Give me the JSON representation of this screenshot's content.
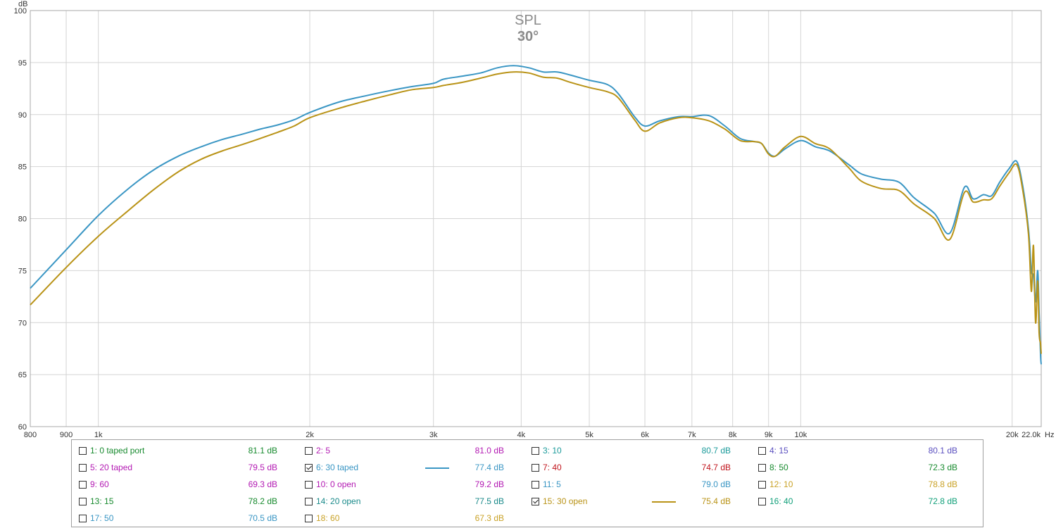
{
  "chart_data": {
    "type": "line",
    "title": "SPL",
    "subtitle": "30°",
    "xlabel": "Hz",
    "ylabel": "dB",
    "x_scale": "log",
    "xlim": [
      800,
      22000
    ],
    "ylim": [
      60,
      100
    ],
    "x_ticks": [
      {
        "v": 800,
        "label": "800"
      },
      {
        "v": 900,
        "label": "900"
      },
      {
        "v": 1000,
        "label": "1k"
      },
      {
        "v": 2000,
        "label": "2k"
      },
      {
        "v": 3000,
        "label": "3k"
      },
      {
        "v": 4000,
        "label": "4k"
      },
      {
        "v": 5000,
        "label": "5k"
      },
      {
        "v": 6000,
        "label": "6k"
      },
      {
        "v": 7000,
        "label": "7k"
      },
      {
        "v": 8000,
        "label": "8k"
      },
      {
        "v": 9000,
        "label": "9k"
      },
      {
        "v": 10000,
        "label": "10k"
      },
      {
        "v": 20000,
        "label": "20k"
      },
      {
        "v": 22000,
        "label": "22.0k"
      }
    ],
    "y_ticks": [
      {
        "v": 60,
        "label": "60"
      },
      {
        "v": 65,
        "label": "65"
      },
      {
        "v": 70,
        "label": "70"
      },
      {
        "v": 75,
        "label": "75"
      },
      {
        "v": 80,
        "label": "80"
      },
      {
        "v": 85,
        "label": "85"
      },
      {
        "v": 90,
        "label": "90"
      },
      {
        "v": 95,
        "label": "95"
      },
      {
        "v": 100,
        "label": "100"
      }
    ],
    "grid": true,
    "series": [
      {
        "name": "6: 30 taped",
        "color": "#3a96c4",
        "points": [
          [
            800,
            73.3
          ],
          [
            900,
            77.0
          ],
          [
            1000,
            80.3
          ],
          [
            1100,
            82.8
          ],
          [
            1200,
            84.7
          ],
          [
            1300,
            86.0
          ],
          [
            1400,
            86.9
          ],
          [
            1500,
            87.6
          ],
          [
            1600,
            88.1
          ],
          [
            1700,
            88.6
          ],
          [
            1800,
            89.0
          ],
          [
            1900,
            89.5
          ],
          [
            2000,
            90.2
          ],
          [
            2200,
            91.2
          ],
          [
            2400,
            91.8
          ],
          [
            2600,
            92.3
          ],
          [
            2800,
            92.7
          ],
          [
            3000,
            93.0
          ],
          [
            3100,
            93.4
          ],
          [
            3300,
            93.7
          ],
          [
            3500,
            94.0
          ],
          [
            3700,
            94.5
          ],
          [
            3900,
            94.7
          ],
          [
            4100,
            94.5
          ],
          [
            4300,
            94.1
          ],
          [
            4500,
            94.1
          ],
          [
            4700,
            93.8
          ],
          [
            5000,
            93.3
          ],
          [
            5300,
            92.9
          ],
          [
            5500,
            92.0
          ],
          [
            5800,
            89.8
          ],
          [
            6000,
            88.9
          ],
          [
            6300,
            89.4
          ],
          [
            6700,
            89.8
          ],
          [
            7000,
            89.8
          ],
          [
            7400,
            89.9
          ],
          [
            7800,
            88.9
          ],
          [
            8200,
            87.7
          ],
          [
            8600,
            87.4
          ],
          [
            8800,
            87.2
          ],
          [
            9000,
            86.3
          ],
          [
            9200,
            86.0
          ],
          [
            9500,
            86.7
          ],
          [
            10000,
            87.5
          ],
          [
            10500,
            86.9
          ],
          [
            11000,
            86.5
          ],
          [
            11700,
            85.2
          ],
          [
            12200,
            84.3
          ],
          [
            13000,
            83.8
          ],
          [
            13800,
            83.5
          ],
          [
            14500,
            82.0
          ],
          [
            15500,
            80.5
          ],
          [
            16300,
            78.6
          ],
          [
            17100,
            83.0
          ],
          [
            17600,
            81.9
          ],
          [
            18200,
            82.3
          ],
          [
            18700,
            82.2
          ],
          [
            19200,
            83.5
          ],
          [
            19800,
            84.8
          ],
          [
            20300,
            85.5
          ],
          [
            20700,
            83.2
          ],
          [
            21100,
            79.0
          ],
          [
            21300,
            75.0
          ],
          [
            21450,
            74.5
          ],
          [
            21600,
            72.0
          ],
          [
            21750,
            75.0
          ],
          [
            21850,
            71.0
          ],
          [
            21950,
            67.0
          ],
          [
            22000,
            66.0
          ]
        ]
      },
      {
        "name": "15: 30 open",
        "color": "#b99317",
        "points": [
          [
            800,
            71.7
          ],
          [
            900,
            75.3
          ],
          [
            1000,
            78.3
          ],
          [
            1100,
            80.7
          ],
          [
            1200,
            82.8
          ],
          [
            1300,
            84.5
          ],
          [
            1400,
            85.7
          ],
          [
            1500,
            86.5
          ],
          [
            1600,
            87.1
          ],
          [
            1700,
            87.7
          ],
          [
            1800,
            88.3
          ],
          [
            1900,
            88.9
          ],
          [
            2000,
            89.7
          ],
          [
            2200,
            90.6
          ],
          [
            2400,
            91.3
          ],
          [
            2600,
            91.9
          ],
          [
            2800,
            92.4
          ],
          [
            3000,
            92.6
          ],
          [
            3100,
            92.8
          ],
          [
            3300,
            93.1
          ],
          [
            3500,
            93.5
          ],
          [
            3700,
            93.9
          ],
          [
            3900,
            94.1
          ],
          [
            4100,
            94.0
          ],
          [
            4300,
            93.6
          ],
          [
            4500,
            93.5
          ],
          [
            4700,
            93.1
          ],
          [
            5000,
            92.6
          ],
          [
            5300,
            92.2
          ],
          [
            5500,
            91.6
          ],
          [
            5800,
            89.5
          ],
          [
            6000,
            88.4
          ],
          [
            6300,
            89.2
          ],
          [
            6700,
            89.7
          ],
          [
            7000,
            89.7
          ],
          [
            7400,
            89.4
          ],
          [
            7800,
            88.6
          ],
          [
            8200,
            87.5
          ],
          [
            8600,
            87.4
          ],
          [
            8800,
            87.2
          ],
          [
            9000,
            86.2
          ],
          [
            9200,
            86.0
          ],
          [
            9500,
            86.9
          ],
          [
            10000,
            87.9
          ],
          [
            10500,
            87.2
          ],
          [
            11000,
            86.7
          ],
          [
            11700,
            84.9
          ],
          [
            12200,
            83.6
          ],
          [
            13000,
            82.9
          ],
          [
            13800,
            82.7
          ],
          [
            14500,
            81.4
          ],
          [
            15500,
            80.0
          ],
          [
            16300,
            78.0
          ],
          [
            17100,
            82.5
          ],
          [
            17600,
            81.6
          ],
          [
            18200,
            81.8
          ],
          [
            18700,
            81.9
          ],
          [
            19200,
            83.1
          ],
          [
            19800,
            84.4
          ],
          [
            20300,
            85.2
          ],
          [
            20700,
            82.8
          ],
          [
            21100,
            78.5
          ],
          [
            21300,
            73.0
          ],
          [
            21450,
            77.4
          ],
          [
            21600,
            70.0
          ],
          [
            21750,
            74.0
          ],
          [
            21850,
            69.0
          ],
          [
            21950,
            68.0
          ],
          [
            22000,
            67.0
          ]
        ]
      }
    ]
  },
  "legend": [
    {
      "label": "1: 0 taped port",
      "value": "81.1 dB",
      "color": "#178a2e",
      "checked": false
    },
    {
      "label": "2: 5",
      "value": "81.0 dB",
      "color": "#b31ab3",
      "checked": false
    },
    {
      "label": "3: 10",
      "value": "80.7 dB",
      "color": "#1a9a9a",
      "checked": false
    },
    {
      "label": "4: 15",
      "value": "80.1 dB",
      "color": "#5a4fbf",
      "checked": false
    },
    {
      "label": "5: 20 taped",
      "value": "79.5 dB",
      "color": "#b31ab3",
      "checked": false
    },
    {
      "label": "6: 30 taped",
      "value": "77.4 dB",
      "color": "#3a96c4",
      "checked": true
    },
    {
      "label": "7: 40",
      "value": "74.7 dB",
      "color": "#c0141c",
      "checked": false
    },
    {
      "label": "8: 50",
      "value": "72.3 dB",
      "color": "#178a2e",
      "checked": false
    },
    {
      "label": "9: 60",
      "value": "69.3 dB",
      "color": "#b31ab3",
      "checked": false
    },
    {
      "label": "10: 0 open",
      "value": "79.2 dB",
      "color": "#b31ab3",
      "checked": false
    },
    {
      "label": "11: 5",
      "value": "79.0 dB",
      "color": "#3a96c4",
      "checked": false
    },
    {
      "label": "12: 10",
      "value": "78.8 dB",
      "color": "#c9a227",
      "checked": false
    },
    {
      "label": "13: 15",
      "value": "78.2 dB",
      "color": "#178a2e",
      "checked": false
    },
    {
      "label": "14: 20 open",
      "value": "77.5 dB",
      "color": "#1a8a8a",
      "checked": false
    },
    {
      "label": "15: 30 open",
      "value": "75.4 dB",
      "color": "#b99317",
      "checked": true
    },
    {
      "label": "16: 40",
      "value": "72.8 dB",
      "color": "#12a07a",
      "checked": false
    },
    {
      "label": "17: 50",
      "value": "70.5 dB",
      "color": "#3a96c4",
      "checked": false
    },
    {
      "label": "18: 60",
      "value": "67.3 dB",
      "color": "#c9a227",
      "checked": false
    }
  ]
}
